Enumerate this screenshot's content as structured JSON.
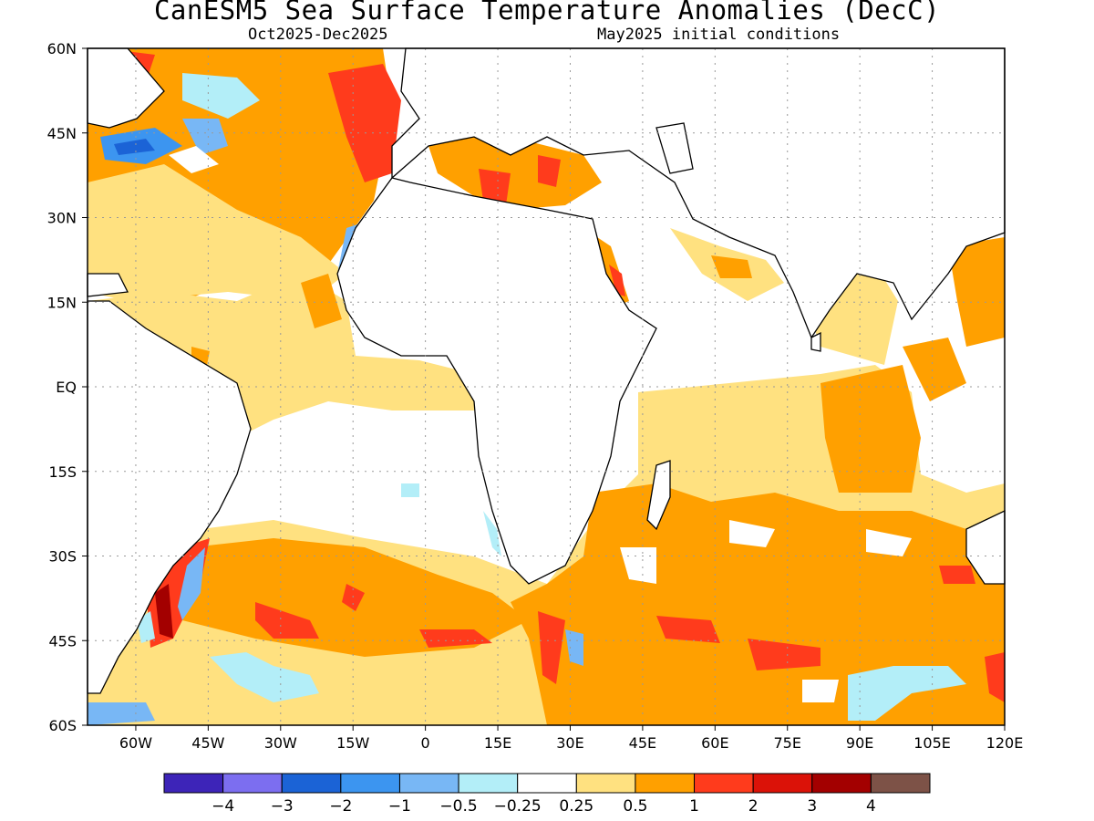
{
  "header": {
    "title": "CanESM5 Sea Surface Temperature Anomalies (DecC)",
    "period": "Oct2025-Dec2025",
    "init": "May2025 initial conditions"
  },
  "axes": {
    "lat_labels": [
      "60N",
      "45N",
      "30N",
      "15N",
      "EQ",
      "15S",
      "30S",
      "45S",
      "60S"
    ],
    "lat_values": [
      60,
      45,
      30,
      15,
      0,
      -15,
      -30,
      -45,
      -60
    ],
    "lon_labels": [
      "60W",
      "45W",
      "30W",
      "15W",
      "0",
      "15E",
      "30E",
      "45E",
      "60E",
      "75E",
      "90E",
      "105E",
      "120E"
    ],
    "lon_values": [
      -60,
      -45,
      -30,
      -15,
      0,
      15,
      30,
      45,
      60,
      75,
      90,
      105,
      120
    ],
    "lon_range": [
      -70,
      120
    ],
    "lat_range": [
      -60,
      60
    ],
    "grid": "dotted"
  },
  "colorbar": {
    "labels": [
      "-4",
      "-3",
      "-2",
      "-1",
      "-0.5",
      "-0.25",
      "0.25",
      "0.5",
      "1",
      "2",
      "3",
      "4"
    ],
    "colors": [
      "#3d24b8",
      "#7c6ef0",
      "#1b63d6",
      "#3c95f0",
      "#78b7f5",
      "#b3eef8",
      "#ffffff",
      "#ffe180",
      "#ffa000",
      "#ff3b1c",
      "#db1208",
      "#a30000",
      "#7d5247"
    ]
  },
  "chart_data": {
    "type": "heatmap",
    "title": "CanESM5 Sea Surface Temperature Anomalies (DecC)",
    "units": "DecC",
    "levels": [
      -4,
      -3,
      -2,
      -1,
      -0.5,
      -0.25,
      0.25,
      0.5,
      1,
      2,
      3,
      4
    ]
  }
}
